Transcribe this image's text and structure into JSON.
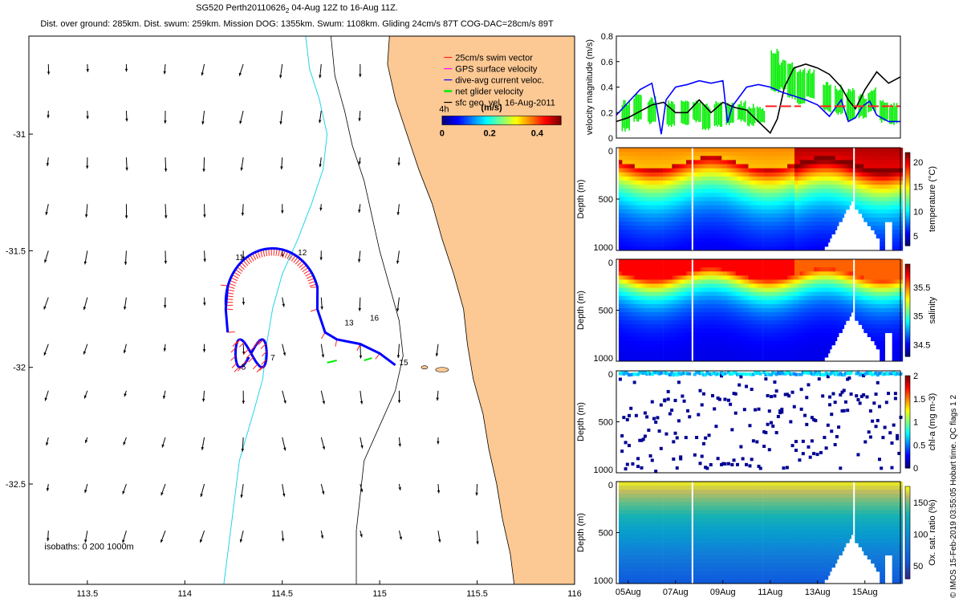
{
  "header": {
    "title_main": "SG520 Perth20110626",
    "title_sub": "2",
    "title_rest": " 04-Aug 12Z to 16-Aug 11Z.",
    "subtitle": "Dist. over ground: 285km. Dist. swum: 259km. Mission DOG: 1355km. Swum: 1108km. Gliding 24cm/s 87T COG-DAC=28cm/s 89T"
  },
  "colors": {
    "land": "#fcc893",
    "isobath_200": "#23d3e8",
    "coast": "#000000",
    "swim": "#ff2020",
    "gps": "#ff00ff",
    "dac": "#0000ff",
    "net": "#00ee00",
    "geo": "#000000"
  },
  "chart_data": [
    {
      "type": "map",
      "name": "track-map",
      "xlim": [
        113.2,
        116.0
      ],
      "ylim": [
        -32.93,
        -30.58
      ],
      "xticks": [
        "113.5",
        "114",
        "114.5",
        "115",
        "115.5",
        "116"
      ],
      "xtick_values": [
        113.5,
        114,
        114.5,
        115,
        115.5,
        116
      ],
      "yticks": [
        "-31",
        "-31.5",
        "-32",
        "-32.5"
      ],
      "ytick_values": [
        -31,
        -31.5,
        -32,
        -32.5
      ],
      "legend": [
        {
          "label": "25cm/s swim vector",
          "color": "#ff2020"
        },
        {
          "label": "GPS surface velocity",
          "color": "#ff00ff"
        },
        {
          "label": "dive-avg current veloc.",
          "color": "#0000ff"
        },
        {
          "label": "net glider velocity",
          "color": "#00ee00"
        },
        {
          "label": "sfc geo. vel. 16-Aug-2011",
          "color": "#000000"
        }
      ],
      "legend_placement": "top-right",
      "tag_4h": "4h",
      "colorbar": {
        "label": "(m/s)",
        "ticks": [
          "0",
          "0.2",
          "0.4"
        ],
        "tick_values": [
          0,
          0.2,
          0.4
        ],
        "range": [
          0,
          0.5
        ]
      },
      "day_labels": [
        {
          "text": "11",
          "lon": 114.26,
          "lat": -31.54
        },
        {
          "text": "12",
          "lon": 114.58,
          "lat": -31.52
        },
        {
          "text": "13",
          "lon": 114.82,
          "lat": -31.82
        },
        {
          "text": "16",
          "lon": 114.95,
          "lat": -31.8
        },
        {
          "text": "5",
          "lon": 114.29,
          "lat": -32.01
        },
        {
          "text": "7",
          "lon": 114.44,
          "lat": -31.97
        },
        {
          "text": "15",
          "lon": 115.1,
          "lat": -31.99
        }
      ],
      "isobaths_label": "isobaths: 0   200  1000m"
    },
    {
      "type": "line",
      "name": "velocity-magnitude",
      "ylabel": "velocity magnitude (m/s)",
      "ylim": [
        0,
        0.8
      ],
      "yticks": [
        "0",
        "0.2",
        "0.4",
        "0.6",
        "0.8"
      ],
      "ytick_values": [
        0,
        0.2,
        0.4,
        0.6,
        0.8
      ],
      "xlim_days": [
        4.5,
        16.5
      ],
      "series": [
        {
          "color": "#000000",
          "t": [
            4.5,
            5.0,
            5.5,
            6.0,
            6.5,
            7.0,
            7.5,
            8.0,
            8.5,
            9.0,
            9.5,
            10.0,
            10.5,
            11.0,
            11.3,
            11.6,
            12.0,
            12.5,
            13.0,
            13.5,
            14.0,
            14.3,
            14.6,
            15.0,
            15.5,
            16.0,
            16.5
          ],
          "v": [
            0.13,
            0.16,
            0.21,
            0.26,
            0.28,
            0.2,
            0.2,
            0.3,
            0.2,
            0.28,
            0.24,
            0.22,
            0.13,
            0.04,
            0.15,
            0.4,
            0.55,
            0.58,
            0.55,
            0.5,
            0.4,
            0.3,
            0.23,
            0.38,
            0.52,
            0.43,
            0.48
          ]
        },
        {
          "color": "#0000ff",
          "t": [
            4.5,
            5.0,
            5.5,
            6.0,
            6.2,
            6.4,
            6.6,
            7.0,
            7.5,
            8.0,
            8.5,
            9.0,
            9.2,
            9.4,
            9.6,
            10.0,
            10.5,
            11.0,
            11.5,
            12.0,
            12.5,
            13.0,
            13.5,
            14.0,
            14.3,
            14.6,
            14.9,
            15.2,
            15.5,
            16.0,
            16.5
          ],
          "v": [
            0.18,
            0.28,
            0.38,
            0.43,
            0.25,
            0.03,
            0.3,
            0.4,
            0.42,
            0.45,
            0.43,
            0.45,
            0.12,
            0.25,
            0.3,
            0.4,
            0.42,
            0.4,
            0.36,
            0.33,
            0.3,
            0.26,
            0.17,
            0.3,
            0.13,
            0.16,
            0.25,
            0.29,
            0.18,
            0.13,
            0.13
          ]
        },
        {
          "color": "#ff2020",
          "segments": [
            [
              10.8,
              12.3
            ],
            [
              13.1,
              14.3
            ],
            [
              14.5,
              16.5
            ]
          ],
          "value": 0.25,
          "dashed": true
        }
      ],
      "net_bars": {
        "color": "#00ee00",
        "t": [
          4.9,
          5.4,
          6.0,
          6.8,
          7.4,
          7.9,
          8.3,
          8.8,
          9.3,
          9.8,
          10.2,
          10.6,
          11.2,
          11.5,
          11.9,
          12.3,
          12.7,
          13.4,
          13.9,
          14.4,
          14.9,
          15.3,
          15.8,
          16.2
        ],
        "lo": [
          0.05,
          0.12,
          0.1,
          0.08,
          0.1,
          0.12,
          0.05,
          0.08,
          0.1,
          0.12,
          0.09,
          0.1,
          0.35,
          0.38,
          0.3,
          0.25,
          0.3,
          0.2,
          0.18,
          0.13,
          0.15,
          0.2,
          0.12,
          0.1
        ],
        "hi": [
          0.3,
          0.35,
          0.33,
          0.3,
          0.32,
          0.3,
          0.28,
          0.3,
          0.28,
          0.3,
          0.27,
          0.26,
          0.7,
          0.62,
          0.6,
          0.55,
          0.55,
          0.45,
          0.42,
          0.4,
          0.35,
          0.4,
          0.3,
          0.28
        ]
      }
    },
    {
      "type": "heatmap",
      "name": "temperature-section",
      "variable": "temperature",
      "ylabel": "Depth (m)",
      "yticks": [
        "0",
        "500",
        "1000"
      ],
      "ytick_values": [
        0,
        500,
        1000
      ],
      "clabel": "temperature (°C)",
      "cticks": [
        "20",
        "15",
        "10",
        "5"
      ],
      "ctick_values": [
        20,
        15,
        10,
        5
      ],
      "clim": [
        3,
        22
      ],
      "surface_by_day": [
        [
          4.5,
          17
        ],
        [
          6.5,
          16
        ],
        [
          8.5,
          17
        ],
        [
          10.5,
          17
        ],
        [
          11.0,
          20
        ],
        [
          13.0,
          21
        ],
        [
          16.5,
          21
        ]
      ]
    },
    {
      "type": "heatmap",
      "name": "salinity-section",
      "variable": "salinity",
      "ylabel": "Depth (m)",
      "yticks": [
        "0",
        "500",
        "1000"
      ],
      "ytick_values": [
        0,
        500,
        1000
      ],
      "clabel": "salinity",
      "cticks": [
        "35.5",
        "35",
        "34.5"
      ],
      "ctick_values": [
        35.5,
        35,
        34.5
      ],
      "clim": [
        34.3,
        35.9
      ]
    },
    {
      "type": "scatter",
      "name": "chlorophyll-section",
      "variable": "chl-a",
      "ylabel": "Depth (m)",
      "yticks": [
        "0",
        "500",
        "1000"
      ],
      "ytick_values": [
        0,
        500,
        1000
      ],
      "clabel": "chl-a (mg m-3)",
      "cticks": [
        "2",
        "1.5",
        "1",
        "0.5",
        "0"
      ],
      "ctick_values": [
        2,
        1.5,
        1,
        0.5,
        0
      ],
      "clim": [
        0,
        2
      ]
    },
    {
      "type": "heatmap",
      "name": "oxygen-section",
      "variable": "oxygen",
      "ylabel": "Depth (m)",
      "yticks": [
        "0",
        "500",
        "1000"
      ],
      "ytick_values": [
        0,
        500,
        1000
      ],
      "clabel": "Ox. sat. ratio (%)",
      "cticks": [
        "150",
        "100",
        "50"
      ],
      "ctick_values": [
        150,
        100,
        50
      ],
      "clim": [
        30,
        175
      ],
      "xticks": [
        "05Aug",
        "07Aug",
        "09Aug",
        "11Aug",
        "13Aug",
        "15Aug"
      ],
      "xtick_values": [
        5,
        7,
        9,
        11,
        13,
        15
      ]
    }
  ],
  "side_note": "© IMOS 15-Feb-2019 03:55:05 Hobart time. QC flags 1 2"
}
